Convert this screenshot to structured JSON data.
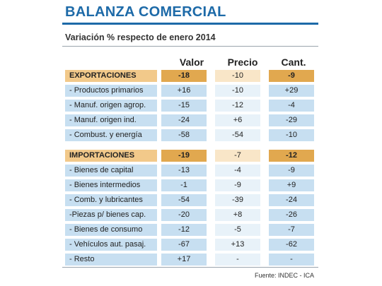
{
  "title": "BALANZA COMERCIAL",
  "subtitle": "Variación % respecto de enero 2014",
  "columns": [
    "Valor",
    "Precio",
    "Cant."
  ],
  "exportaciones": {
    "header": {
      "label": "EXPORTACIONES",
      "valor": "-18",
      "precio": "-10",
      "cant": "-9"
    },
    "rows": [
      {
        "label": "- Productos primarios",
        "valor": "+16",
        "precio": "-10",
        "cant": "+29"
      },
      {
        "label": "- Manuf. origen agrop.",
        "valor": "-15",
        "precio": "-12",
        "cant": "-4"
      },
      {
        "label": "- Manuf. origen ind.",
        "valor": "-24",
        "precio": "+6",
        "cant": "-29"
      },
      {
        "label": "- Combust. y energía",
        "valor": "-58",
        "precio": "-54",
        "cant": "-10"
      }
    ]
  },
  "importaciones": {
    "header": {
      "label": "IMPORTACIONES",
      "valor": "-19",
      "precio": "-7",
      "cant": "-12"
    },
    "rows": [
      {
        "label": "- Bienes de capital",
        "valor": "-13",
        "precio": "-4",
        "cant": "-9"
      },
      {
        "label": "- Bienes intermedios",
        "valor": "-1",
        "precio": "-9",
        "cant": "+9"
      },
      {
        "label": "- Comb. y lubricantes",
        "valor": "-54",
        "precio": "-39",
        "cant": "-24"
      },
      {
        "label": "-Piezas p/ bienes cap.",
        "valor": "-20",
        "precio": "+8",
        "cant": "-26"
      },
      {
        "label": "- Bienes de consumo",
        "valor": "-12",
        "precio": "-5",
        "cant": "-7"
      },
      {
        "label": "- Vehículos aut. pasaj.",
        "valor": "-67",
        "precio": "+13",
        "cant": "-62"
      },
      {
        "label": "- Resto",
        "valor": "+17",
        "precio": "-",
        "cant": "-"
      }
    ]
  },
  "source": "Fuente: INDEC - ICA",
  "colors": {
    "accent_blue": "#1d6aa8",
    "row_blue": "#c7dff1",
    "header_orange": "#e1a84f"
  }
}
